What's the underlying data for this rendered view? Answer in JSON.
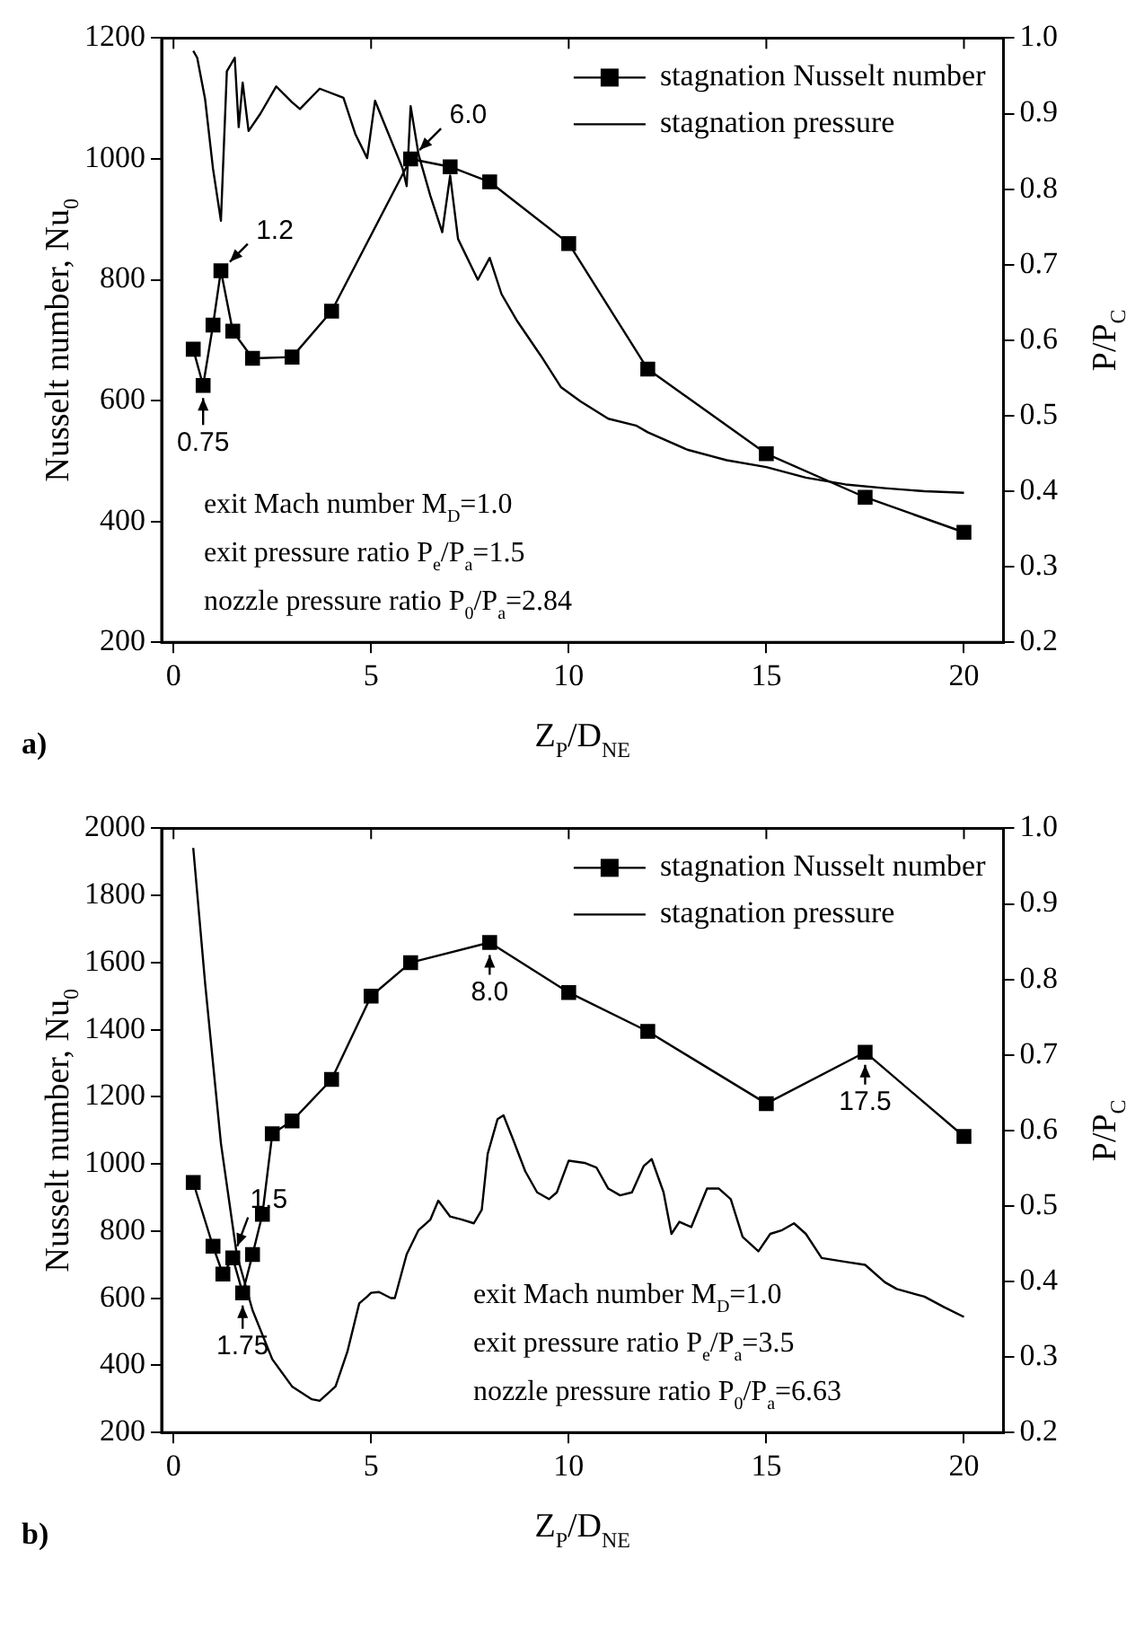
{
  "chart_data": [
    {
      "type": "line",
      "title": "a)",
      "xlabel": "Z$_{P}$/D$_{NE}$",
      "ylabel": "Nusselt number, Nu$_{0}$",
      "y2label": "P/P$_{C}$",
      "xlim": [
        -0.3,
        21
      ],
      "xticks": [
        0,
        5,
        10,
        15,
        20
      ],
      "ylim": [
        200,
        1200
      ],
      "yticks": [
        200,
        400,
        600,
        800,
        1000,
        1200
      ],
      "y2lim": [
        0.2,
        1.0
      ],
      "y2ticks": [
        0.2,
        0.3,
        0.4,
        0.5,
        0.6,
        0.7,
        0.8,
        0.9,
        {
          "value": 1,
          "label": "1.0"
        }
      ],
      "grid": false,
      "legend": "top right",
      "series": [
        {
          "name": "stagnation Nusselt number",
          "color": "#000000",
          "marker": "square",
          "x": [
            0.5,
            0.75,
            1.0,
            1.2,
            1.5,
            2,
            3,
            4,
            6,
            7,
            8,
            10,
            12,
            15,
            17.5,
            20
          ],
          "values": [
            685,
            625,
            725,
            815,
            715,
            670,
            672,
            748,
            1000,
            987,
            962,
            860,
            652,
            512,
            440,
            382
          ]
        },
        {
          "name": "stagnation pressure",
          "color": "#000000",
          "marker": "none",
          "axis": "y2",
          "x": [
            0.5,
            0.6,
            0.8,
            1.0,
            1.2,
            1.35,
            1.55,
            1.65,
            1.75,
            1.9,
            2.2,
            2.6,
            3.0,
            3.2,
            3.7,
            4.3,
            4.6,
            4.9,
            5.1,
            5.3,
            5.8,
            5.9,
            6.0,
            6.2,
            6.5,
            6.8,
            7.0,
            7.2,
            7.7,
            8.0,
            8.3,
            8.7,
            9.3,
            9.8,
            10.3,
            11,
            11.7,
            12,
            13,
            14,
            15,
            16,
            17,
            18,
            19,
            20
          ],
          "values": [
            0.983,
            0.974,
            0.919,
            0.827,
            0.758,
            0.956,
            0.974,
            0.882,
            0.941,
            0.877,
            0.9,
            0.936,
            0.915,
            0.906,
            0.933,
            0.921,
            0.873,
            0.841,
            0.917,
            0.891,
            0.827,
            0.804,
            0.91,
            0.846,
            0.791,
            0.743,
            0.818,
            0.734,
            0.68,
            0.709,
            0.661,
            0.625,
            0.579,
            0.538,
            0.519,
            0.496,
            0.487,
            0.478,
            0.455,
            0.441,
            0.432,
            0.418,
            0.409,
            0.404,
            0.4,
            0.398
          ]
        }
      ],
      "annotations": [
        {
          "text": "0.75",
          "x": 0.75,
          "y": 625
        },
        {
          "text": "1.2",
          "x": 1.2,
          "y": 815
        },
        {
          "text": "6.0",
          "x": 6.0,
          "y": 1000
        },
        "exit Mach number M$_{D}$=1.0",
        "exit pressure ratio P$_{e}$/P$_{a}$=1.5",
        "nozzle pressure ratio P$_{0}$/P$_{a}$=2.84"
      ]
    },
    {
      "type": "line",
      "title": "b)",
      "xlabel": "Z$_{P}$/D$_{NE}$",
      "ylabel": "Nusselt number, Nu$_{0}$",
      "y2label": "P/P$_{C}$",
      "xlim": [
        -0.3,
        21
      ],
      "xticks": [
        0,
        5,
        10,
        15,
        20
      ],
      "ylim": [
        200,
        2000
      ],
      "yticks": [
        200,
        400,
        600,
        800,
        1000,
        1200,
        1400,
        1600,
        1800,
        2000
      ],
      "y2lim": [
        0.2,
        1.0
      ],
      "y2ticks": [
        0.2,
        0.3,
        0.4,
        0.5,
        0.6,
        0.7,
        0.8,
        0.9,
        {
          "value": 1,
          "label": "1.0"
        }
      ],
      "grid": false,
      "legend": "top right",
      "series": [
        {
          "name": "stagnation Nusselt number",
          "color": "#000000",
          "marker": "square",
          "x": [
            0.5,
            1.0,
            1.25,
            1.5,
            1.75,
            2,
            2.25,
            2.5,
            3,
            4,
            5,
            6,
            8,
            10,
            12,
            15,
            17.5,
            20
          ],
          "values": [
            945,
            755,
            672,
            720,
            616,
            730,
            850,
            1090,
            1128,
            1252,
            1500,
            1600,
            1660,
            1511,
            1395,
            1180,
            1333,
            1082
          ]
        },
        {
          "name": "stagnation pressure",
          "color": "#000000",
          "marker": "none",
          "axis": "y2",
          "x": [
            0.5,
            0.8,
            1.2,
            1.6,
            2.0,
            2.5,
            3.0,
            3.5,
            3.7,
            4.1,
            4.4,
            4.7,
            4.9,
            5.0,
            5.2,
            5.5,
            5.6,
            5.9,
            6.2,
            6.5,
            6.7,
            7.0,
            7.3,
            7.6,
            7.8,
            7.95,
            8.2,
            8.35,
            8.6,
            8.9,
            9.2,
            9.5,
            9.7,
            10.0,
            10.4,
            10.7,
            11.0,
            11.3,
            11.6,
            11.9,
            12.1,
            12.4,
            12.6,
            12.8,
            13.1,
            13.5,
            13.8,
            14.1,
            14.4,
            14.8,
            15.1,
            15.4,
            15.7,
            16.0,
            16.4,
            17.0,
            17.5,
            18.0,
            18.3,
            19.0,
            19.5,
            20.0
          ],
          "values": [
            0.974,
            0.795,
            0.583,
            0.436,
            0.362,
            0.297,
            0.261,
            0.244,
            0.242,
            0.261,
            0.307,
            0.371,
            0.38,
            0.385,
            0.386,
            0.378,
            0.378,
            0.436,
            0.468,
            0.482,
            0.507,
            0.486,
            0.482,
            0.477,
            0.495,
            0.569,
            0.615,
            0.62,
            0.587,
            0.546,
            0.518,
            0.509,
            0.518,
            0.56,
            0.557,
            0.551,
            0.523,
            0.514,
            0.518,
            0.553,
            0.562,
            0.518,
            0.463,
            0.479,
            0.472,
            0.523,
            0.523,
            0.509,
            0.459,
            0.44,
            0.463,
            0.468,
            0.477,
            0.463,
            0.431,
            0.426,
            0.422,
            0.399,
            0.39,
            0.38,
            0.366,
            0.353
          ]
        }
      ],
      "annotations": [
        {
          "text": "1.5",
          "x": 1.5,
          "y": 720
        },
        {
          "text": "1.75",
          "x": 1.75,
          "y": 616
        },
        {
          "text": "8.0",
          "x": 8.0,
          "y": 1660
        },
        {
          "text": "17.5",
          "x": 17.5,
          "y": 1333
        },
        "exit Mach number M$_{D}$=1.0",
        "exit pressure ratio P$_{e}$/P$_{a}$=3.5",
        "nozzle pressure ratio P$_{0}$/P$_{a}$=6.63"
      ]
    }
  ]
}
